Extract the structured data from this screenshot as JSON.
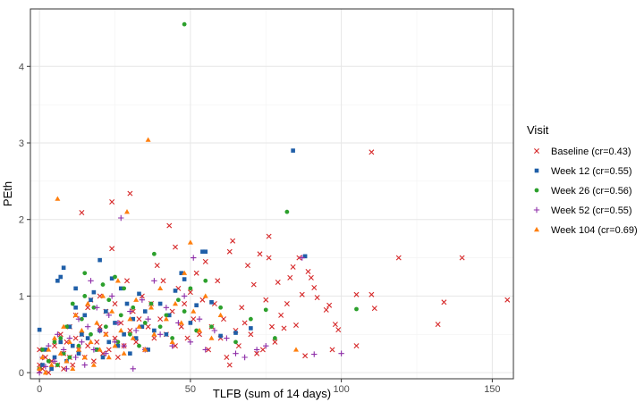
{
  "chart_data": {
    "type": "scatter",
    "xlabel": "TLFB (sum of 14 days)",
    "ylabel": "PEth",
    "xlim": [
      -3,
      157
    ],
    "ylim": [
      -0.08,
      4.75
    ],
    "x_ticks": [
      0,
      50,
      100,
      150
    ],
    "y_ticks": [
      0,
      1,
      2,
      3,
      4
    ],
    "grid": true,
    "legend_title": "Visit",
    "legend_position": "right",
    "series": [
      {
        "name": "Baseline (cr=0.43)",
        "color": "#d62728",
        "marker": "x",
        "points": [
          [
            0,
            0.02
          ],
          [
            0,
            0.1
          ],
          [
            0,
            0.3
          ],
          [
            1,
            0.05
          ],
          [
            2,
            0.2
          ],
          [
            3,
            0.0
          ],
          [
            4,
            0.15
          ],
          [
            5,
            0.35
          ],
          [
            6,
            0.1
          ],
          [
            7,
            0.5
          ],
          [
            8,
            0.25
          ],
          [
            8,
            0.05
          ],
          [
            9,
            0.4
          ],
          [
            10,
            0.6
          ],
          [
            10,
            0.2
          ],
          [
            11,
            0.1
          ],
          [
            12,
            0.45
          ],
          [
            12,
            0.75
          ],
          [
            13,
            0.3
          ],
          [
            14,
            0.5
          ],
          [
            14,
            2.09
          ],
          [
            15,
            0.2
          ],
          [
            16,
            0.85
          ],
          [
            16,
            0.35
          ],
          [
            17,
            0.95
          ],
          [
            18,
            0.15
          ],
          [
            19,
            0.4
          ],
          [
            20,
            1.0
          ],
          [
            20,
            0.6
          ],
          [
            21,
            0.25
          ],
          [
            22,
            0.5
          ],
          [
            22,
            0.8
          ],
          [
            23,
            0.3
          ],
          [
            24,
            1.62
          ],
          [
            24,
            2.23
          ],
          [
            25,
            0.45
          ],
          [
            25,
            0.9
          ],
          [
            26,
            0.2
          ],
          [
            27,
            0.65
          ],
          [
            28,
            0.35
          ],
          [
            29,
            1.2
          ],
          [
            30,
            2.34
          ],
          [
            30,
            0.55
          ],
          [
            31,
            0.8
          ],
          [
            32,
            0.4
          ],
          [
            33,
            0.7
          ],
          [
            34,
            1.0
          ],
          [
            35,
            0.3
          ],
          [
            36,
            0.6
          ],
          [
            37,
            0.9
          ],
          [
            38,
            0.45
          ],
          [
            39,
            1.4
          ],
          [
            40,
            0.7
          ],
          [
            41,
            1.2
          ],
          [
            42,
            0.5
          ],
          [
            43,
            1.92
          ],
          [
            44,
            0.8
          ],
          [
            45,
            1.64
          ],
          [
            45,
            0.35
          ],
          [
            46,
            1.1
          ],
          [
            47,
            0.6
          ],
          [
            48,
            0.9
          ],
          [
            49,
            0.45
          ],
          [
            50,
            1.05
          ],
          [
            51,
            0.7
          ],
          [
            52,
            1.3
          ],
          [
            53,
            0.5
          ],
          [
            54,
            0.95
          ],
          [
            55,
            1.45
          ],
          [
            56,
            0.3
          ],
          [
            57,
            0.6
          ],
          [
            58,
            0.9
          ],
          [
            59,
            1.2
          ],
          [
            60,
            0.45
          ],
          [
            61,
            0.7
          ],
          [
            62,
            0.2
          ],
          [
            63,
            1.58
          ],
          [
            63,
            0.1
          ],
          [
            64,
            1.72
          ],
          [
            65,
            0.55
          ],
          [
            66,
            0.35
          ],
          [
            67,
            0.85
          ],
          [
            68,
            0.65
          ],
          [
            69,
            1.4
          ],
          [
            70,
            0.5
          ],
          [
            71,
            1.15
          ],
          [
            72,
            0.25
          ],
          [
            73,
            1.55
          ],
          [
            74,
            0.3
          ],
          [
            75,
            0.95
          ],
          [
            76,
            1.5
          ],
          [
            76,
            1.78
          ],
          [
            77,
            0.6
          ],
          [
            78,
            0.4
          ],
          [
            79,
            1.18
          ],
          [
            80,
            0.75
          ],
          [
            81,
            0.58
          ],
          [
            82,
            0.9
          ],
          [
            83,
            1.24
          ],
          [
            84,
            1.38
          ],
          [
            85,
            0.62
          ],
          [
            86,
            1.5
          ],
          [
            87,
            1.02
          ],
          [
            88,
            0.22
          ],
          [
            89,
            1.32
          ],
          [
            90,
            1.24
          ],
          [
            91,
            1.11
          ],
          [
            92,
            0.98
          ],
          [
            95,
            0.82
          ],
          [
            96,
            0.88
          ],
          [
            97,
            0.3
          ],
          [
            98,
            0.63
          ],
          [
            99,
            0.56
          ],
          [
            105,
            0.35
          ],
          [
            105,
            1.02
          ],
          [
            110,
            2.88
          ],
          [
            110,
            1.02
          ],
          [
            111,
            0.84
          ],
          [
            119,
            1.5
          ],
          [
            132,
            0.63
          ],
          [
            134,
            0.92
          ],
          [
            140,
            1.5
          ],
          [
            155,
            0.95
          ]
        ]
      },
      {
        "name": "Week 12 (cr=0.55)",
        "color": "#1f5fa8",
        "marker": "square",
        "points": [
          [
            0,
            0.56
          ],
          [
            1,
            0.1
          ],
          [
            2,
            0.3
          ],
          [
            4,
            0.05
          ],
          [
            5,
            0.2
          ],
          [
            6,
            1.2
          ],
          [
            7,
            0.4
          ],
          [
            7,
            1.25
          ],
          [
            8,
            1.37
          ],
          [
            9,
            0.15
          ],
          [
            10,
            0.6
          ],
          [
            11,
            0.35
          ],
          [
            12,
            1.1
          ],
          [
            12,
            0.85
          ],
          [
            13,
            0.25
          ],
          [
            14,
            0.5
          ],
          [
            15,
            0.75
          ],
          [
            16,
            0.45
          ],
          [
            17,
            0.95
          ],
          [
            18,
            1.05
          ],
          [
            19,
            0.3
          ],
          [
            20,
            0.55
          ],
          [
            20,
            1.47
          ],
          [
            21,
            0.2
          ],
          [
            22,
            0.8
          ],
          [
            23,
            0.4
          ],
          [
            24,
            1.23
          ],
          [
            25,
            0.65
          ],
          [
            26,
            0.35
          ],
          [
            27,
            1.1
          ],
          [
            28,
            0.5
          ],
          [
            29,
            0.9
          ],
          [
            30,
            0.25
          ],
          [
            31,
            0.7
          ],
          [
            32,
            0.45
          ],
          [
            33,
            1.03
          ],
          [
            34,
            0.6
          ],
          [
            35,
            0.8
          ],
          [
            36,
            0.3
          ],
          [
            38,
            0.55
          ],
          [
            40,
            0.9
          ],
          [
            42,
            0.5
          ],
          [
            43,
            0.75
          ],
          [
            45,
            1.07
          ],
          [
            47,
            1.3
          ],
          [
            48,
            1.22
          ],
          [
            50,
            0.65
          ],
          [
            52,
            0.88
          ],
          [
            54,
            1.58
          ],
          [
            55,
            1.58
          ],
          [
            57,
            0.92
          ],
          [
            60,
            0.48
          ],
          [
            65,
            0.52
          ],
          [
            70,
            0.58
          ],
          [
            84,
            2.9
          ],
          [
            88,
            1.52
          ]
        ]
      },
      {
        "name": "Week 26 (cr=0.56)",
        "color": "#2ca02c",
        "marker": "circle",
        "points": [
          [
            0,
            0.05
          ],
          [
            1,
            0.3
          ],
          [
            3,
            0.15
          ],
          [
            5,
            0.4
          ],
          [
            6,
            0.1
          ],
          [
            7,
            0.45
          ],
          [
            8,
            0.25
          ],
          [
            9,
            0.6
          ],
          [
            10,
            0.2
          ],
          [
            11,
            0.9
          ],
          [
            13,
            0.35
          ],
          [
            14,
            0.7
          ],
          [
            15,
            1.0
          ],
          [
            15,
            1.3
          ],
          [
            17,
            0.5
          ],
          [
            18,
            0.85
          ],
          [
            19,
            0.3
          ],
          [
            21,
            1.15
          ],
          [
            22,
            0.6
          ],
          [
            23,
            0.95
          ],
          [
            25,
            1.25
          ],
          [
            26,
            0.4
          ],
          [
            27,
            0.75
          ],
          [
            28,
            1.1
          ],
          [
            30,
            0.5
          ],
          [
            31,
            0.85
          ],
          [
            33,
            0.35
          ],
          [
            35,
            0.65
          ],
          [
            37,
            0.9
          ],
          [
            38,
            1.55
          ],
          [
            40,
            0.6
          ],
          [
            42,
            0.75
          ],
          [
            44,
            0.45
          ],
          [
            46,
            0.95
          ],
          [
            48,
            4.55
          ],
          [
            48,
            0.8
          ],
          [
            50,
            1.1
          ],
          [
            52,
            0.55
          ],
          [
            55,
            1.2
          ],
          [
            57,
            0.6
          ],
          [
            60,
            0.85
          ],
          [
            65,
            0.4
          ],
          [
            70,
            0.7
          ],
          [
            75,
            0.82
          ],
          [
            78,
            0.45
          ],
          [
            82,
            2.1
          ],
          [
            105,
            0.83
          ]
        ]
      },
      {
        "name": "Week 52 (cr=0.55)",
        "color": "#8e2ea8",
        "marker": "plus",
        "points": [
          [
            0,
            0.0
          ],
          [
            1,
            0.2
          ],
          [
            2,
            0.08
          ],
          [
            3,
            0.35
          ],
          [
            5,
            0.15
          ],
          [
            6,
            0.5
          ],
          [
            8,
            0.3
          ],
          [
            9,
            0.05
          ],
          [
            10,
            0.45
          ],
          [
            12,
            0.2
          ],
          [
            13,
            0.7
          ],
          [
            14,
            0.4
          ],
          [
            15,
            0.1
          ],
          [
            16,
            0.6
          ],
          [
            17,
            1.2
          ],
          [
            18,
            0.3
          ],
          [
            19,
            0.85
          ],
          [
            20,
            0.55
          ],
          [
            22,
            0.25
          ],
          [
            23,
            0.75
          ],
          [
            24,
            1.0
          ],
          [
            25,
            0.4
          ],
          [
            26,
            0.65
          ],
          [
            27,
            2.02
          ],
          [
            28,
            0.35
          ],
          [
            30,
            0.8
          ],
          [
            31,
            0.05
          ],
          [
            32,
            0.55
          ],
          [
            34,
            0.95
          ],
          [
            35,
            0.3
          ],
          [
            36,
            0.7
          ],
          [
            38,
            1.2
          ],
          [
            40,
            0.5
          ],
          [
            42,
            0.85
          ],
          [
            44,
            0.35
          ],
          [
            46,
            0.65
          ],
          [
            48,
            1.0
          ],
          [
            50,
            0.4
          ],
          [
            51,
            1.5
          ],
          [
            53,
            0.7
          ],
          [
            55,
            0.3
          ],
          [
            58,
            0.55
          ],
          [
            62,
            0.45
          ],
          [
            65,
            0.25
          ],
          [
            68,
            0.2
          ],
          [
            72,
            0.3
          ],
          [
            75,
            0.35
          ],
          [
            87,
            1.5
          ],
          [
            91,
            0.24
          ],
          [
            100,
            0.25
          ]
        ]
      },
      {
        "name": "Week 104 (cr=0.69)",
        "color": "#ff7f0e",
        "marker": "triangle",
        "points": [
          [
            0,
            0.05
          ],
          [
            1,
            0.2
          ],
          [
            2,
            0.0
          ],
          [
            3,
            0.3
          ],
          [
            4,
            0.1
          ],
          [
            5,
            0.45
          ],
          [
            6,
            2.27
          ],
          [
            7,
            0.25
          ],
          [
            8,
            0.6
          ],
          [
            9,
            0.15
          ],
          [
            10,
            0.4
          ],
          [
            11,
            0.05
          ],
          [
            12,
            0.75
          ],
          [
            13,
            0.3
          ],
          [
            14,
            0.55
          ],
          [
            15,
            0.2
          ],
          [
            16,
            0.9
          ],
          [
            17,
            0.4
          ],
          [
            18,
            0.1
          ],
          [
            19,
            0.65
          ],
          [
            20,
            0.3
          ],
          [
            21,
            1.0
          ],
          [
            22,
            0.5
          ],
          [
            23,
            0.2
          ],
          [
            24,
            0.8
          ],
          [
            25,
            0.35
          ],
          [
            26,
            1.2
          ],
          [
            27,
            0.55
          ],
          [
            28,
            0.25
          ],
          [
            29,
            2.1
          ],
          [
            30,
            0.7
          ],
          [
            31,
            0.45
          ],
          [
            32,
            0.95
          ],
          [
            33,
            0.6
          ],
          [
            35,
            0.3
          ],
          [
            36,
            3.04
          ],
          [
            37,
            0.85
          ],
          [
            38,
            0.5
          ],
          [
            40,
            1.1
          ],
          [
            42,
            0.7
          ],
          [
            44,
            0.4
          ],
          [
            45,
            0.9
          ],
          [
            47,
            0.65
          ],
          [
            48,
            1.3
          ],
          [
            50,
            1.7
          ],
          [
            51,
            0.8
          ],
          [
            53,
            0.55
          ],
          [
            55,
            1.0
          ],
          [
            57,
            0.45
          ],
          [
            60,
            0.75
          ],
          [
            85,
            0.3
          ]
        ]
      }
    ]
  }
}
